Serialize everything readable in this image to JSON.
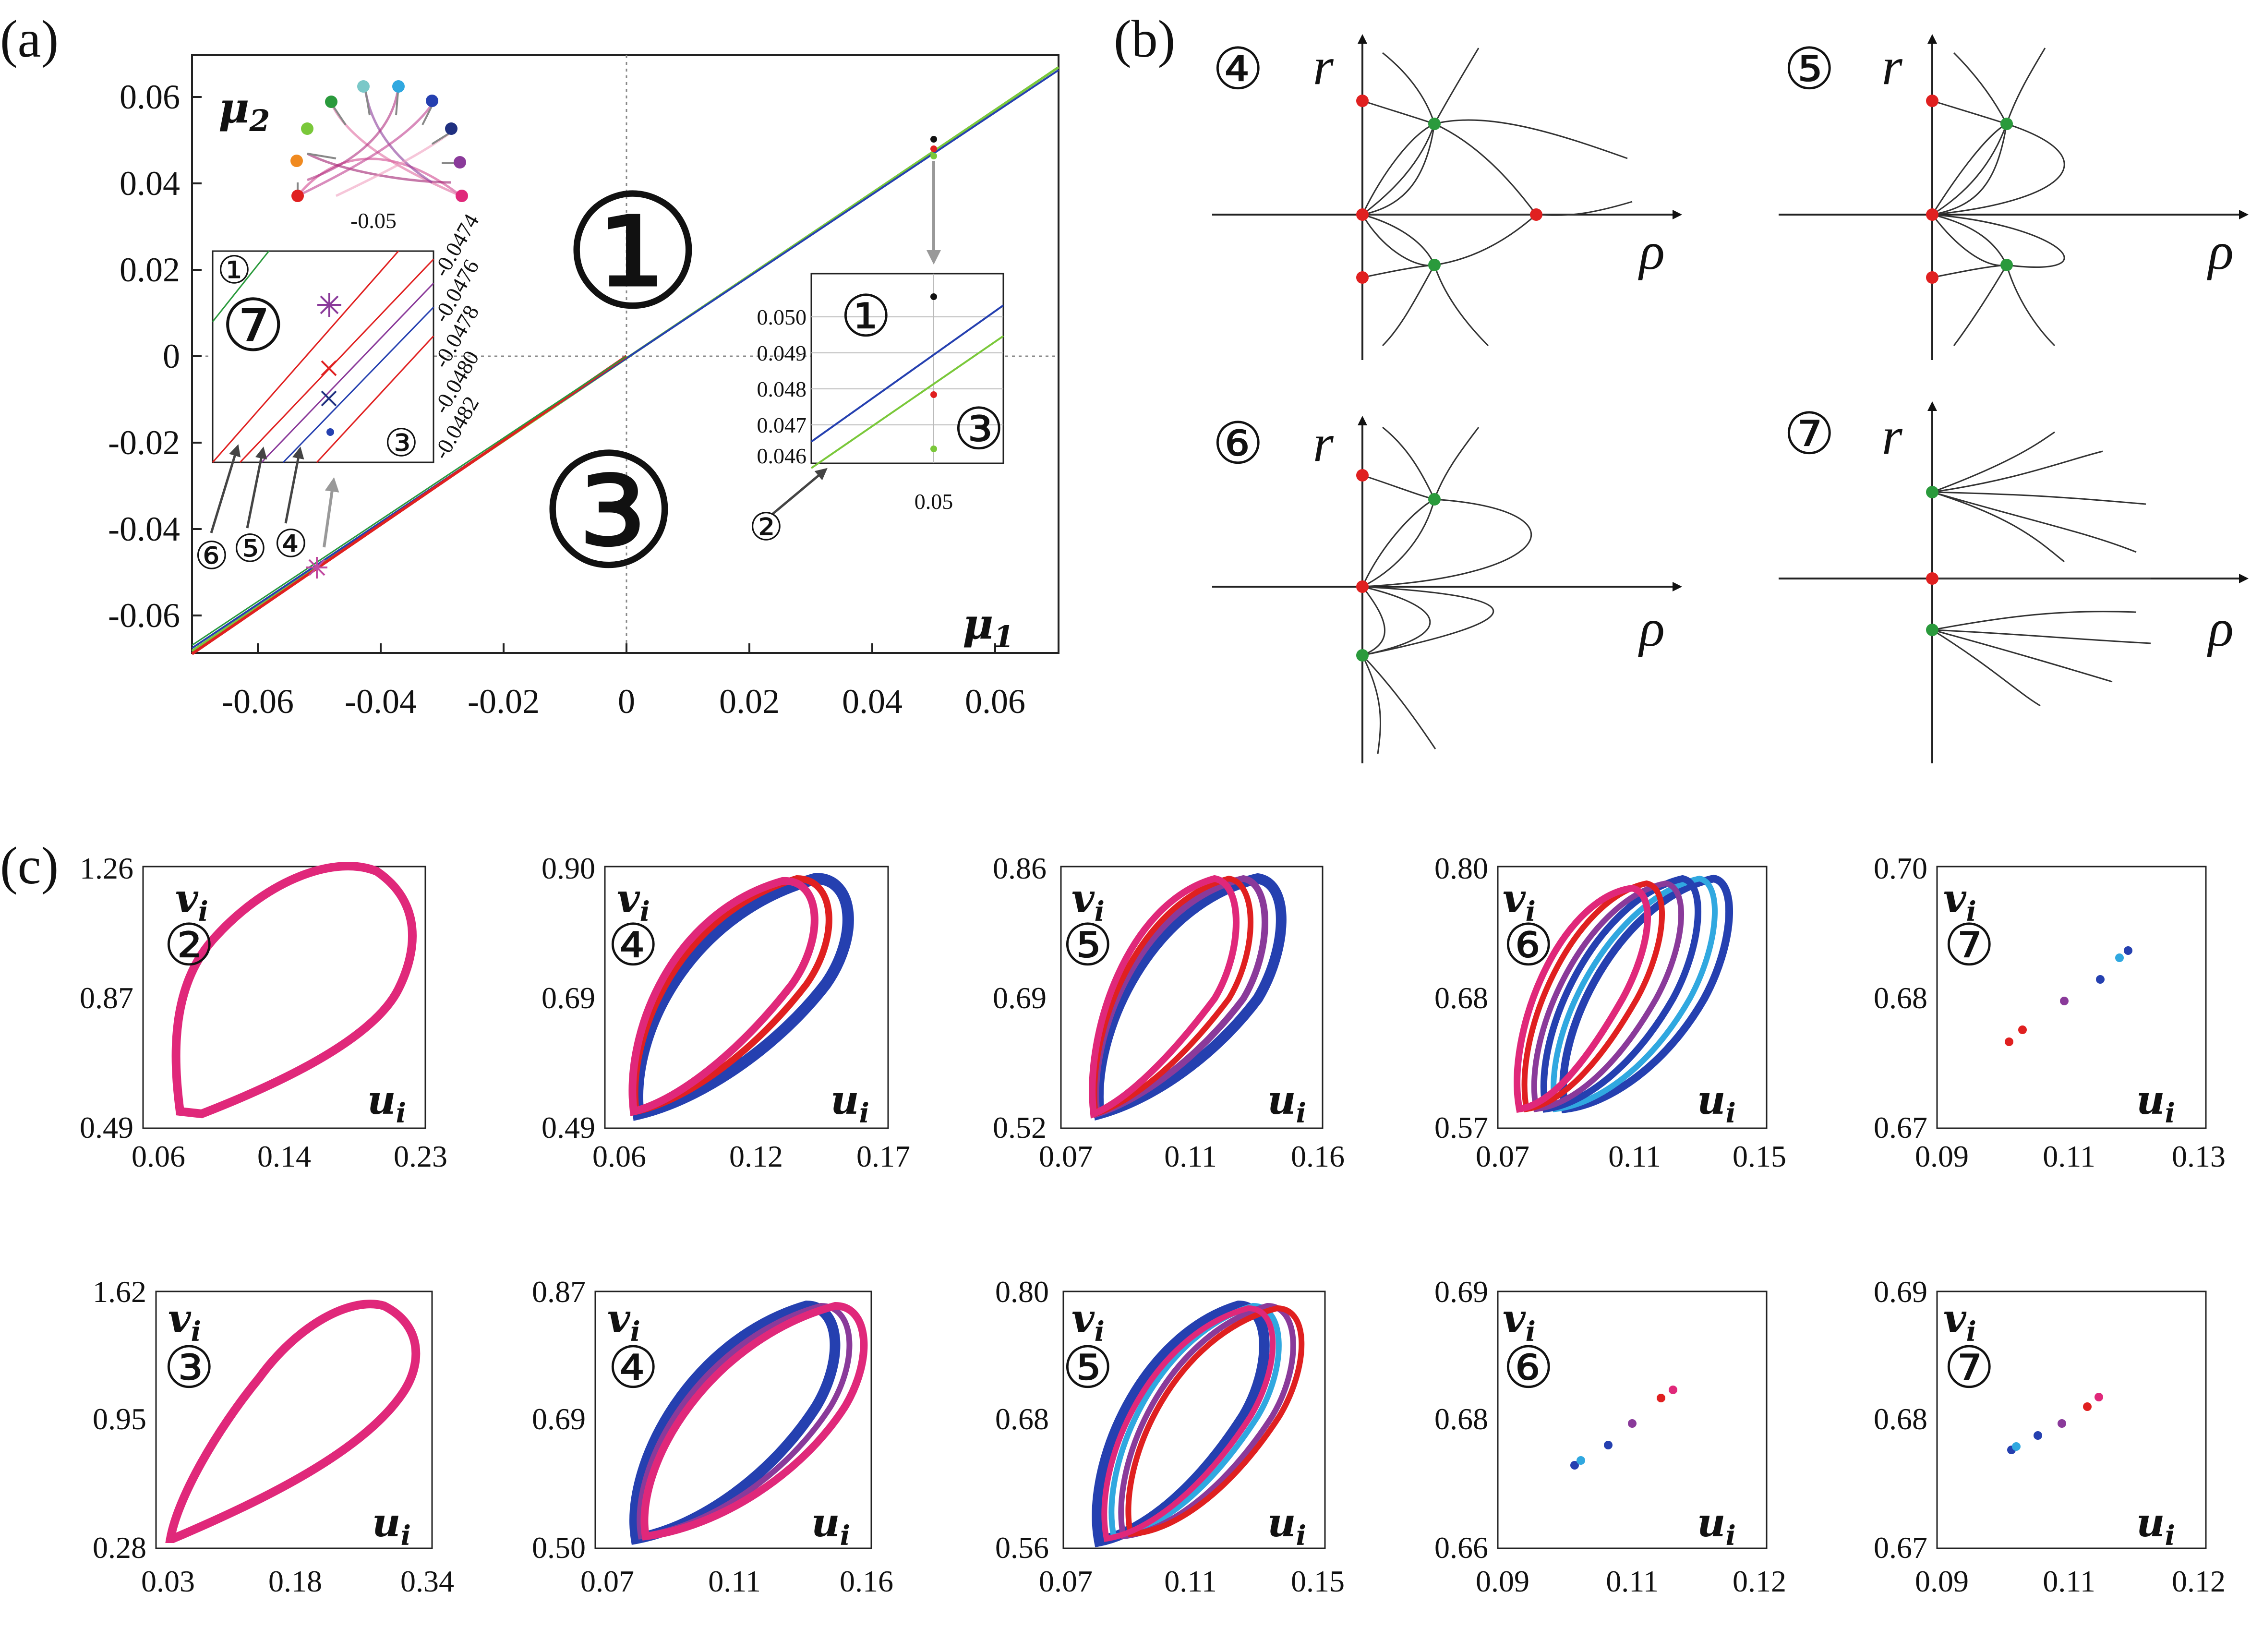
{
  "panel_labels": {
    "a": "(a)",
    "b": "(b)",
    "c": "(c)"
  },
  "colors": {
    "red": "#e02020",
    "green": "#2a9a3c",
    "blue": "#2540b0",
    "purple": "#8a3a9a",
    "magenta": "#e0287a",
    "lightblue": "#30a8e0",
    "lightgreen": "#7ac83a",
    "orange": "#f08a20",
    "black": "#111111",
    "gray": "#999999"
  },
  "panel_a": {
    "xlabel": "μ1",
    "ylabel": "μ2",
    "xticks": [
      "-0.06",
      "-0.04",
      "-0.02",
      "0",
      "0.02",
      "0.04",
      "0.06"
    ],
    "yticks": [
      "0.06",
      "0.04",
      "0.02",
      "0",
      "-0.02",
      "-0.04",
      "-0.06"
    ],
    "region_upper": "①",
    "region_lower": "③",
    "network_label": "-0.05",
    "zoom_left": {
      "region_a": "①",
      "region_b": "⑦",
      "region_c": "③",
      "yticks": [
        "-0.0474",
        "-0.0476",
        "-0.0478",
        "-0.0480",
        "-0.0482"
      ],
      "arrow_labels": [
        "⑥",
        "⑤",
        "④"
      ]
    },
    "zoom_right": {
      "region_a": "①",
      "region_b": "③",
      "yticks": [
        "0.050",
        "0.049",
        "0.048",
        "0.047",
        "0.046"
      ],
      "xtick": "0.05",
      "arrow_label": "②"
    }
  },
  "panel_b": {
    "phase_portraits": [
      {
        "id": "④",
        "ylabel": "r",
        "xlabel": "ρ"
      },
      {
        "id": "⑤",
        "ylabel": "r",
        "xlabel": "ρ"
      },
      {
        "id": "⑥",
        "ylabel": "r",
        "xlabel": "ρ"
      },
      {
        "id": "⑦",
        "ylabel": "r",
        "xlabel": "ρ"
      }
    ]
  },
  "panel_c": {
    "xlabel": "u_i",
    "ylabel": "v_i",
    "plots": [
      {
        "id": "②",
        "xticks": [
          "0.06",
          "0.14",
          "0.23"
        ],
        "yticks": [
          "1.26",
          "0.87",
          "0.49"
        ]
      },
      {
        "id": "④",
        "xticks": [
          "0.06",
          "0.12",
          "0.17"
        ],
        "yticks": [
          "0.90",
          "0.69",
          "0.49"
        ]
      },
      {
        "id": "⑤",
        "xticks": [
          "0.07",
          "0.11",
          "0.16"
        ],
        "yticks": [
          "0.86",
          "0.69",
          "0.52"
        ]
      },
      {
        "id": "⑥",
        "xticks": [
          "0.07",
          "0.11",
          "0.15"
        ],
        "yticks": [
          "0.80",
          "0.68",
          "0.57"
        ]
      },
      {
        "id": "⑦",
        "xticks": [
          "0.09",
          "0.11",
          "0.13"
        ],
        "yticks": [
          "0.70",
          "0.68",
          "0.67"
        ]
      },
      {
        "id": "③",
        "xticks": [
          "0.03",
          "0.18",
          "0.34"
        ],
        "yticks": [
          "1.62",
          "0.95",
          "0.28"
        ]
      },
      {
        "id": "④",
        "xticks": [
          "0.07",
          "0.11",
          "0.16"
        ],
        "yticks": [
          "0.87",
          "0.69",
          "0.50"
        ]
      },
      {
        "id": "⑤",
        "xticks": [
          "0.07",
          "0.11",
          "0.15"
        ],
        "yticks": [
          "0.80",
          "0.68",
          "0.56"
        ]
      },
      {
        "id": "⑥",
        "xticks": [
          "0.09",
          "0.11",
          "0.12"
        ],
        "yticks": [
          "0.69",
          "0.68",
          "0.66"
        ]
      },
      {
        "id": "⑦",
        "xticks": [
          "0.09",
          "0.11",
          "0.12"
        ],
        "yticks": [
          "0.69",
          "0.68",
          "0.67"
        ]
      }
    ]
  }
}
